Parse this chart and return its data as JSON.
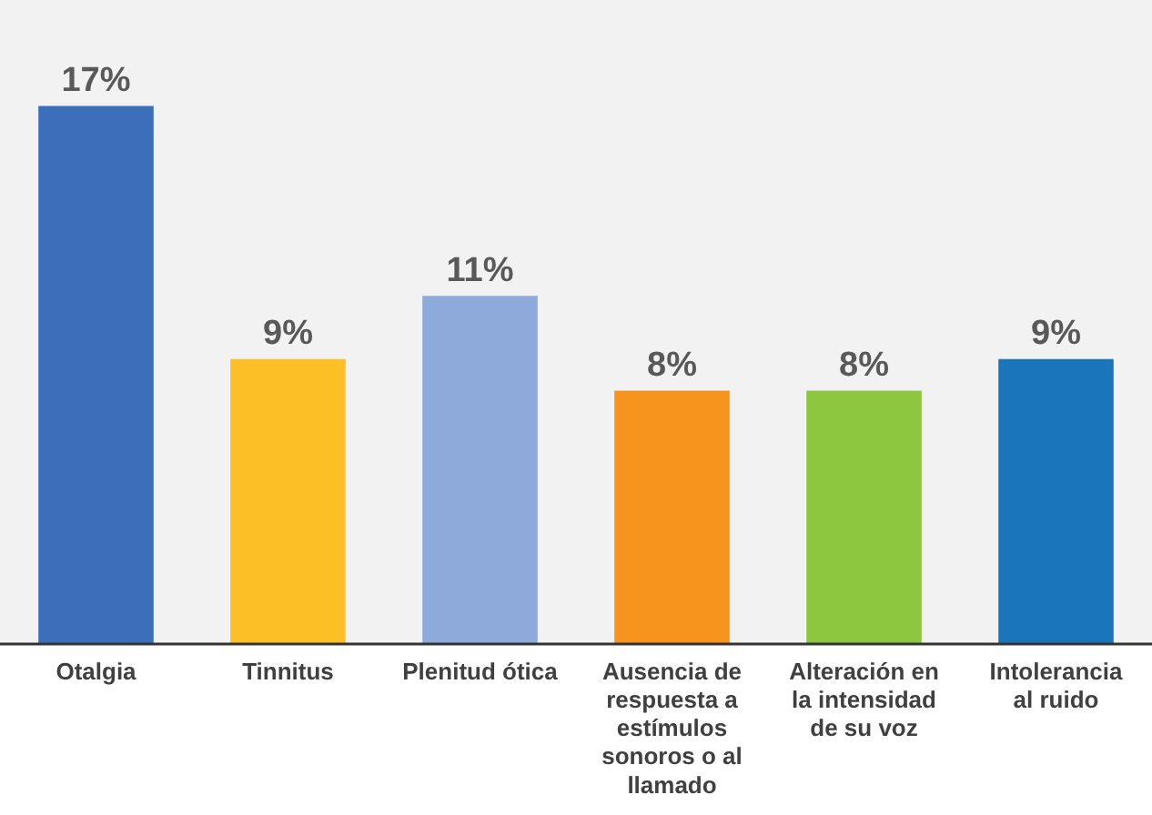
{
  "chart_data": {
    "type": "bar",
    "categories": [
      "Otalgia",
      "Tinnitus",
      "Plenitud ótica",
      "Ausencia de respuesta a estímulos sonoros o al llamado",
      "Alteración en la intensidad de su voz",
      "Intolerancia al ruido"
    ],
    "values": [
      17,
      9,
      11,
      8,
      8,
      9
    ],
    "colors": [
      "#3b6fba",
      "#fdbf26",
      "#8eaadb",
      "#f7941d",
      "#8dc63f",
      "#1b75bb"
    ],
    "value_labels": [
      "17%",
      "9%",
      "11%",
      "8%",
      "8%",
      "9%"
    ],
    "grid": false,
    "legend": false
  }
}
